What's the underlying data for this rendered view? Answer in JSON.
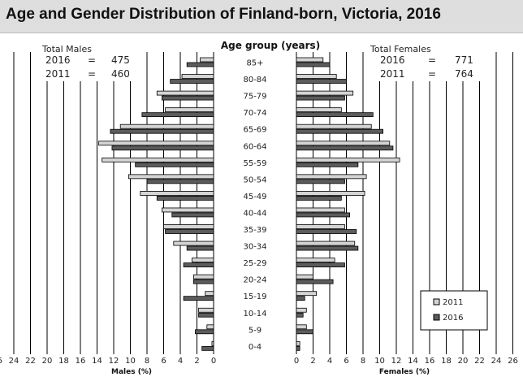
{
  "title": "Age and Gender Distribution of Finland-born, Victoria, 2016",
  "chart_data": {
    "type": "bar",
    "orientation": "horizontal-population-pyramid",
    "center_label": "Age group (years)",
    "categories": [
      "85+",
      "80-84",
      "75-79",
      "70-74",
      "65-69",
      "60-64",
      "55-59",
      "50-54",
      "45-49",
      "40-44",
      "35-39",
      "30-34",
      "25-29",
      "20-24",
      "15-19",
      "10-14",
      "5-9",
      "0-4"
    ],
    "males": {
      "xlabel": "Males (%)",
      "series": [
        {
          "name": "2011",
          "values": [
            1.6,
            3.8,
            6.8,
            5.8,
            11.2,
            13.8,
            13.4,
            10.2,
            8.8,
            6.2,
            6.0,
            4.8,
            2.6,
            2.4,
            1.0,
            1.8,
            0.8,
            0.2
          ]
        },
        {
          "name": "2016",
          "values": [
            3.2,
            5.2,
            6.2,
            8.6,
            12.4,
            12.2,
            9.4,
            8.0,
            6.8,
            5.0,
            5.8,
            3.2,
            3.6,
            2.4,
            3.6,
            1.8,
            2.2,
            1.4
          ]
        }
      ]
    },
    "females": {
      "xlabel": "Females (%)",
      "series": [
        {
          "name": "2011",
          "values": [
            3.2,
            4.8,
            6.8,
            5.4,
            9.0,
            11.2,
            12.4,
            8.4,
            8.2,
            5.8,
            5.8,
            7.0,
            4.6,
            2.0,
            2.4,
            1.2,
            1.2,
            0.4
          ]
        },
        {
          "name": "2016",
          "values": [
            4.0,
            6.0,
            5.8,
            9.2,
            10.4,
            11.6,
            7.4,
            5.8,
            5.4,
            6.4,
            7.2,
            7.4,
            5.8,
            4.4,
            1.0,
            0.8,
            2.0,
            0.4
          ]
        }
      ]
    },
    "x_ticks": [
      26,
      24,
      22,
      20,
      18,
      16,
      14,
      12,
      10,
      8,
      6,
      4,
      2,
      0
    ],
    "xlim": [
      0,
      26
    ],
    "grid": true,
    "legend": {
      "position": "bottom-right",
      "entries": [
        "2011",
        "2016"
      ]
    },
    "colors": {
      "2011": "#d4d4d4",
      "2016": "#5c5c5c",
      "outline": "#000000",
      "grid": "#000000"
    }
  },
  "totals": {
    "males": {
      "label": "Total Males",
      "rows": [
        {
          "year": "2016",
          "eq": "=",
          "value": "475"
        },
        {
          "year": "2011",
          "eq": "=",
          "value": "460"
        }
      ]
    },
    "females": {
      "label": "Total Females",
      "rows": [
        {
          "year": "2016",
          "eq": "=",
          "value": "771"
        },
        {
          "year": "2011",
          "eq": "=",
          "value": "764"
        }
      ]
    }
  }
}
